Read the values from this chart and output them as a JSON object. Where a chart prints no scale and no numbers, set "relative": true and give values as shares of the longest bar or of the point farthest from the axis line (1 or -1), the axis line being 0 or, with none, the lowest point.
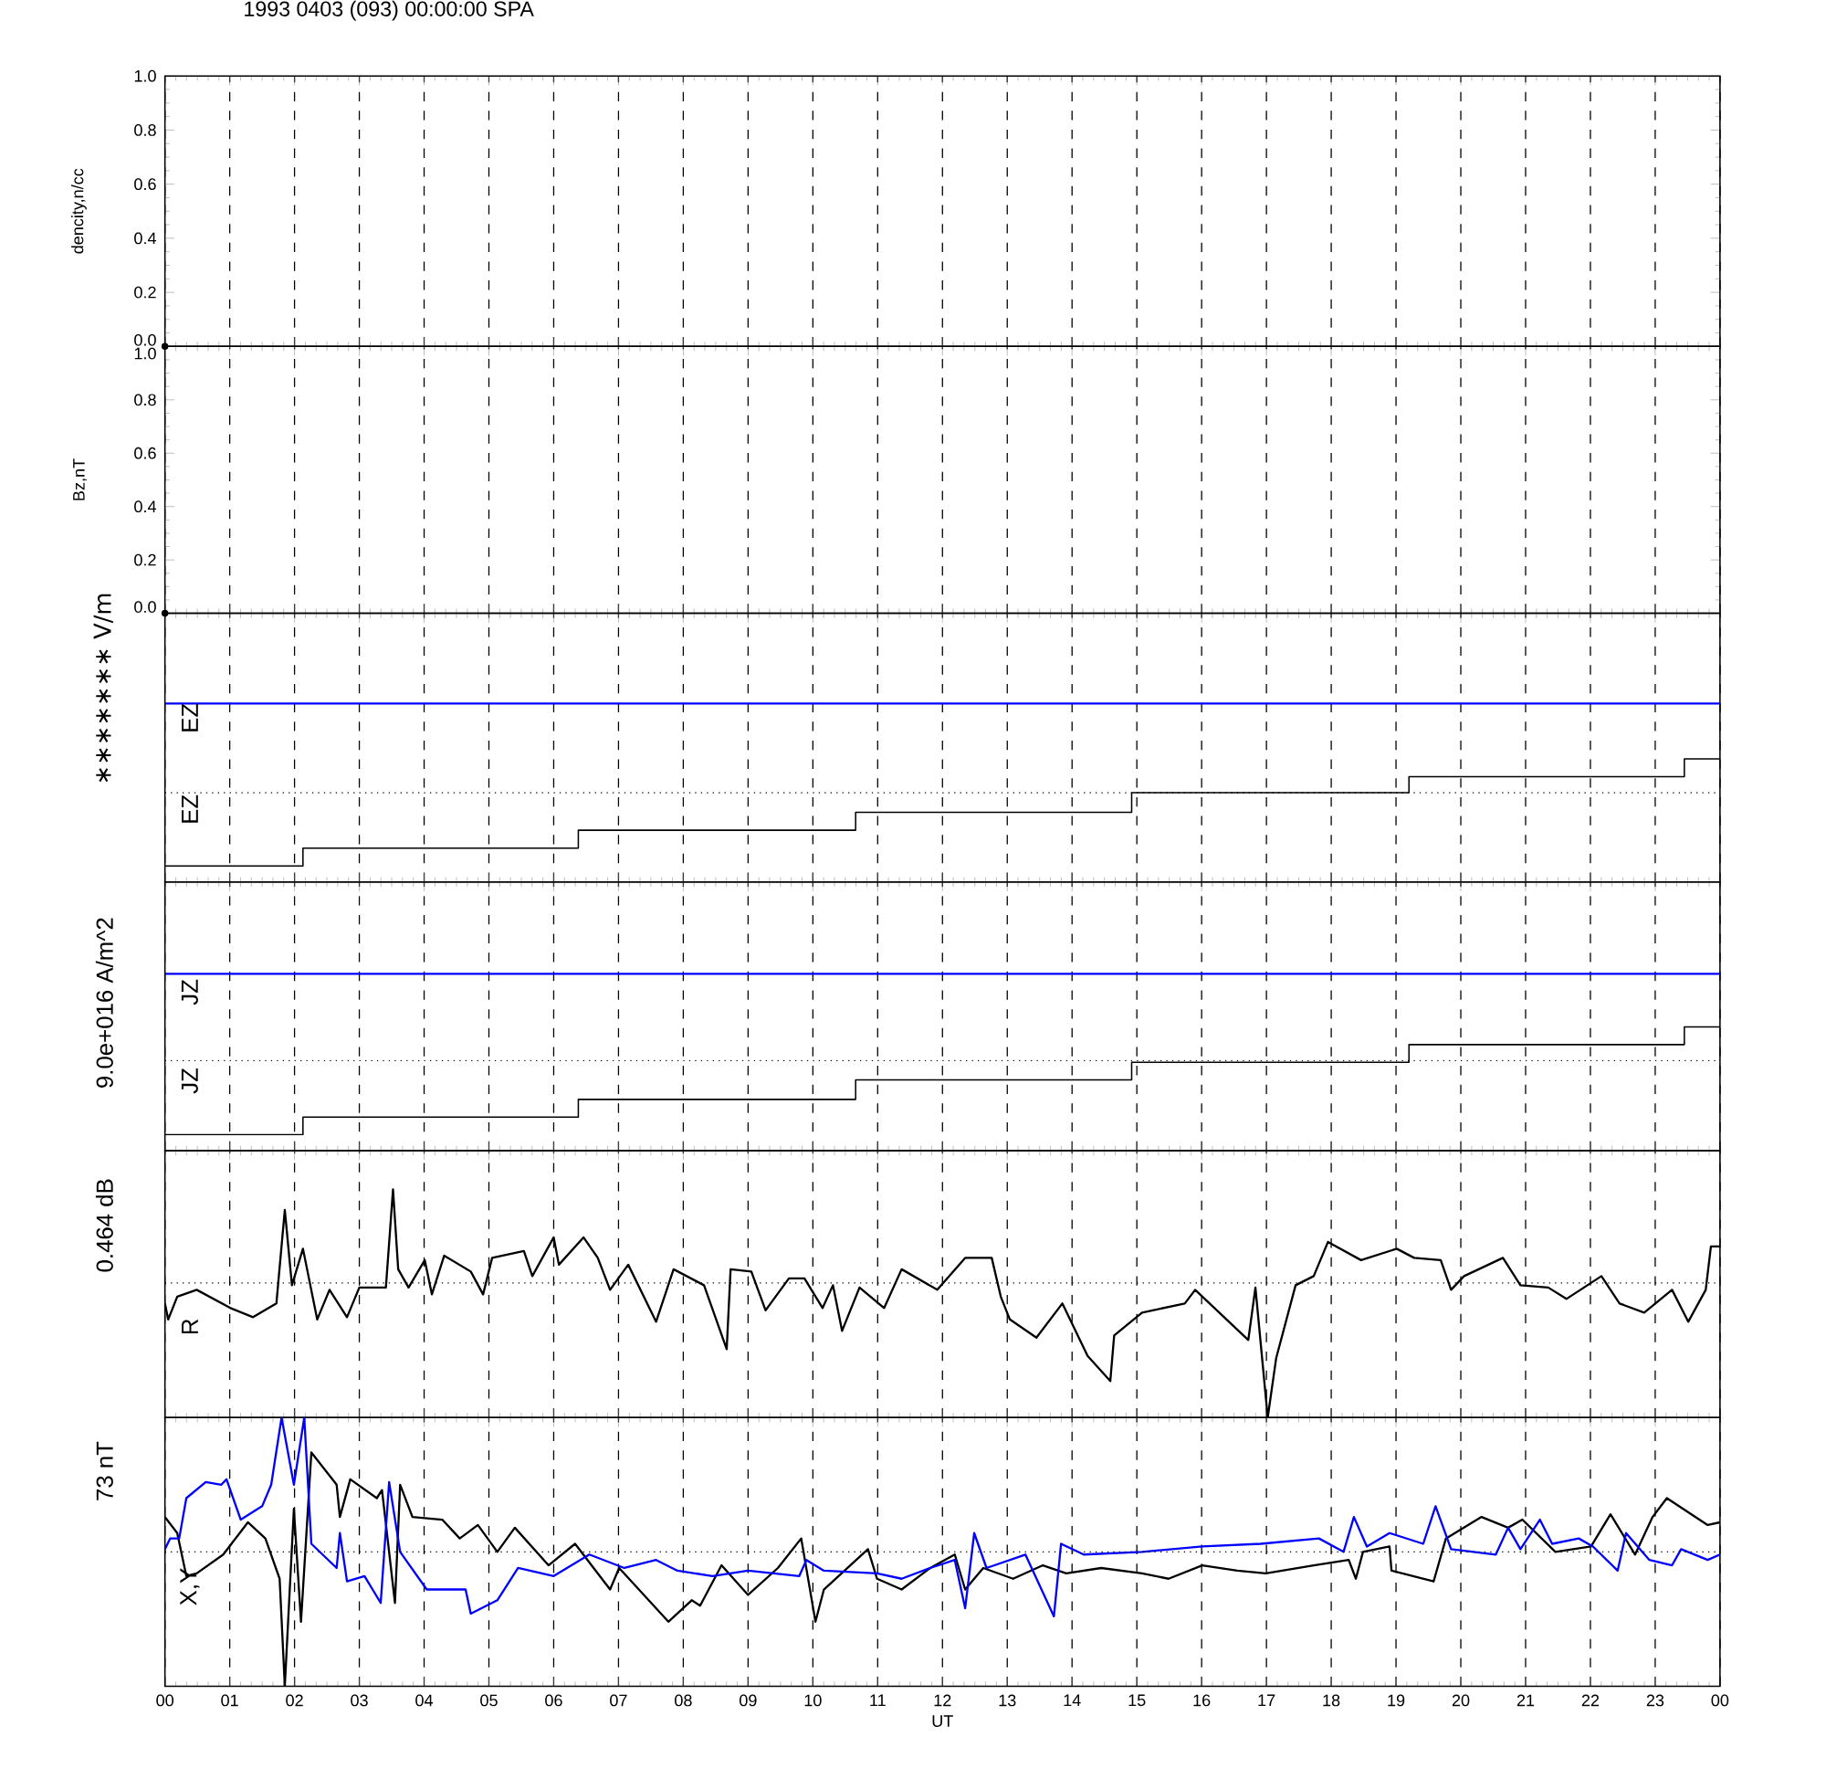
{
  "chart_data": [
    {
      "type": "scatter",
      "title": "1993 0403 (093) 00:00:00 SPA",
      "ylabel": "dencity,n/cc",
      "x": [
        0
      ],
      "values": [
        0
      ],
      "color": "#000000",
      "marker": "circle",
      "xlim": [
        0,
        24
      ],
      "xticks": [
        0,
        1,
        2,
        3,
        4,
        5,
        6,
        7,
        8,
        9,
        10,
        11,
        12,
        13,
        14,
        15,
        16,
        17,
        18,
        19,
        20,
        21,
        22,
        23,
        24
      ],
      "ylim": [
        0,
        1
      ],
      "yticks": [
        {
          "value": 0,
          "label": "0.0"
        },
        {
          "value": 0.2,
          "label": "0.2"
        },
        {
          "value": 0.4,
          "label": "0.4"
        },
        {
          "value": 0.6,
          "label": "0.6"
        },
        {
          "value": 0.8,
          "label": "0.8"
        },
        {
          "value": 1,
          "label": "1.0"
        }
      ],
      "grid": "x",
      "tick_labels": "y"
    },
    {
      "type": "scatter",
      "ylabel": "Bz,nT",
      "x": [
        0
      ],
      "values": [
        0
      ],
      "color": "#000000",
      "marker": "circle",
      "xlim": [
        0,
        24
      ],
      "xticks": [
        0,
        1,
        2,
        3,
        4,
        5,
        6,
        7,
        8,
        9,
        10,
        11,
        12,
        13,
        14,
        15,
        16,
        17,
        18,
        19,
        20,
        21,
        22,
        23,
        24
      ],
      "ylim": [
        0,
        1
      ],
      "yticks": [
        {
          "value": 0,
          "label": "0.0"
        },
        {
          "value": 0.2,
          "label": "0.2"
        },
        {
          "value": 0.4,
          "label": "0.4"
        },
        {
          "value": 0.6,
          "label": "0.6"
        },
        {
          "value": 0.8,
          "label": "0.8"
        },
        {
          "value": 1,
          "label": "1.0"
        }
      ],
      "grid": "x",
      "tick_labels": "y"
    },
    {
      "type": "step",
      "ylabel": "∗∗∗∗∗∗∗ V/m",
      "relative": true,
      "annotations": [
        "EZ",
        "EZ"
      ],
      "xlim": [
        0,
        24
      ],
      "xticks": [
        0,
        1,
        2,
        3,
        4,
        5,
        6,
        7,
        8,
        9,
        10,
        11,
        12,
        13,
        14,
        15,
        16,
        17,
        18,
        19,
        20,
        21,
        22,
        23,
        24
      ],
      "grid": "x",
      "tick_labels": false,
      "ref_lines": [
        {
          "axis": "y",
          "value": 0.5,
          "line_style": "dotted"
        }
      ],
      "series": [
        {
          "color": "#000000",
          "x": [
            0,
            2.13,
            6.38,
            10.66,
            14.92,
            19.2,
            23.45,
            24
          ],
          "values": [
            0.09,
            0.19,
            0.29,
            0.39,
            0.5,
            0.59,
            0.69,
            0.69
          ]
        },
        {
          "type": "line",
          "color": "#0000ff",
          "x": [
            0,
            24
          ],
          "values": [
            1,
            1
          ]
        }
      ]
    },
    {
      "type": "step",
      "ylabel": "9.0e+016 A/m^2",
      "relative": true,
      "annotations": [
        "JZ",
        "JZ"
      ],
      "xlim": [
        0,
        24
      ],
      "xticks": [
        0,
        1,
        2,
        3,
        4,
        5,
        6,
        7,
        8,
        9,
        10,
        11,
        12,
        13,
        14,
        15,
        16,
        17,
        18,
        19,
        20,
        21,
        22,
        23,
        24
      ],
      "grid": "x",
      "tick_labels": false,
      "ref_lines": [
        {
          "axis": "y",
          "value": 0.51,
          "line_style": "dotted"
        }
      ],
      "series": [
        {
          "color": "#000000",
          "x": [
            0,
            2.13,
            6.38,
            10.66,
            14.92,
            19.2,
            23.45,
            24
          ],
          "values": [
            0.09,
            0.19,
            0.29,
            0.4,
            0.5,
            0.6,
            0.7,
            0.7
          ]
        },
        {
          "type": "line",
          "color": "#0000ff",
          "x": [
            0,
            24
          ],
          "values": [
            1,
            1
          ]
        }
      ]
    },
    {
      "type": "line",
      "ylabel": "0.464 dB",
      "relative": true,
      "annotations": [
        "R"
      ],
      "xlim": [
        0,
        24
      ],
      "xticks": [
        0,
        1,
        2,
        3,
        4,
        5,
        6,
        7,
        8,
        9,
        10,
        11,
        12,
        13,
        14,
        15,
        16,
        17,
        18,
        19,
        20,
        21,
        22,
        23,
        24
      ],
      "grid": "x",
      "tick_labels": false,
      "ref_lines": [
        {
          "axis": "y",
          "value": 0.59,
          "line_style": "dotted"
        }
      ],
      "series": [
        {
          "color": "#000000",
          "x": [
            0,
            0.05,
            0.19,
            0.49,
            1.01,
            1.36,
            1.72,
            1.85,
            1.96,
            2.13,
            2.35,
            2.54,
            2.81,
            3.0,
            3.41,
            3.52,
            3.6,
            3.76,
            4.01,
            4.12,
            4.31,
            4.72,
            4.91,
            5.05,
            5.54,
            5.67,
            6.0,
            6.08,
            6.46,
            6.68,
            6.87,
            7.15,
            7.58,
            7.85,
            8.32,
            8.67,
            8.73,
            9.05,
            9.27,
            9.63,
            9.87,
            10.15,
            10.31,
            10.45,
            10.72,
            11.1,
            11.37,
            11.92,
            12.35,
            12.76,
            12.9,
            13.04,
            13.45,
            13.85,
            14.24,
            14.59,
            14.65,
            15.08,
            15.74,
            15.9,
            16.72,
            16.83,
            17.02,
            17.15,
            17.45,
            17.73,
            17.95,
            18.46,
            19.01,
            19.28,
            19.69,
            19.85,
            20.05,
            20.65,
            20.92,
            21.35,
            21.63,
            22.17,
            22.45,
            22.83,
            23.26,
            23.51,
            23.78,
            23.86,
            24
          ],
          "values": [
            0.5,
            0.43,
            0.53,
            0.56,
            0.48,
            0.44,
            0.5,
            0.91,
            0.58,
            0.74,
            0.43,
            0.56,
            0.44,
            0.57,
            0.57,
            1.0,
            0.65,
            0.57,
            0.69,
            0.54,
            0.71,
            0.64,
            0.54,
            0.7,
            0.73,
            0.62,
            0.79,
            0.67,
            0.79,
            0.7,
            0.56,
            0.67,
            0.42,
            0.65,
            0.58,
            0.3,
            0.65,
            0.64,
            0.47,
            0.61,
            0.61,
            0.48,
            0.58,
            0.38,
            0.57,
            0.48,
            0.65,
            0.56,
            0.7,
            0.7,
            0.53,
            0.43,
            0.35,
            0.5,
            0.27,
            0.16,
            0.36,
            0.46,
            0.5,
            0.56,
            0.34,
            0.57,
            0,
            0.26,
            0.58,
            0.62,
            0.77,
            0.69,
            0.74,
            0.7,
            0.69,
            0.56,
            0.62,
            0.7,
            0.58,
            0.57,
            0.52,
            0.62,
            0.5,
            0.46,
            0.56,
            0.42,
            0.56,
            0.75,
            0.75
          ]
        }
      ]
    },
    {
      "type": "line",
      "ylabel": "73 nT",
      "xlabel": "UT",
      "relative": true,
      "annotations": [
        "X,Y"
      ],
      "xlim": [
        0,
        24
      ],
      "xticks": [
        {
          "value": 0,
          "label": "00"
        },
        {
          "value": 1,
          "label": "01"
        },
        {
          "value": 2,
          "label": "02"
        },
        {
          "value": 3,
          "label": "03"
        },
        {
          "value": 4,
          "label": "04"
        },
        {
          "value": 5,
          "label": "05"
        },
        {
          "value": 6,
          "label": "06"
        },
        {
          "value": 7,
          "label": "07"
        },
        {
          "value": 8,
          "label": "08"
        },
        {
          "value": 9,
          "label": "09"
        },
        {
          "value": 10,
          "label": "10"
        },
        {
          "value": 11,
          "label": "11"
        },
        {
          "value": 12,
          "label": "12"
        },
        {
          "value": 13,
          "label": "13"
        },
        {
          "value": 14,
          "label": "14"
        },
        {
          "value": 15,
          "label": "15"
        },
        {
          "value": 16,
          "label": "16"
        },
        {
          "value": 17,
          "label": "17"
        },
        {
          "value": 18,
          "label": "18"
        },
        {
          "value": 19,
          "label": "19"
        },
        {
          "value": 20,
          "label": "20"
        },
        {
          "value": 21,
          "label": "21"
        },
        {
          "value": 22,
          "label": "22"
        },
        {
          "value": 23,
          "label": "23"
        },
        {
          "value": 24,
          "label": "00"
        }
      ],
      "grid": "x",
      "tick_labels": "x",
      "ref_lines": [
        {
          "axis": "y",
          "value": 0.5,
          "line_style": "dotted"
        }
      ],
      "series": [
        {
          "color": "#000000",
          "x": [
            0,
            0.19,
            0.33,
            0.49,
            0.9,
            1.28,
            1.55,
            1.77,
            1.85,
            1.99,
            2.1,
            2.26,
            2.65,
            2.7,
            2.86,
            3.27,
            3.35,
            3.55,
            3.63,
            3.82,
            4.28,
            4.55,
            4.83,
            5.13,
            5.4,
            5.92,
            6.33,
            6.87,
            7.01,
            7.77,
            8.13,
            8.26,
            8.59,
            9.0,
            9.46,
            9.82,
            10.04,
            10.17,
            10.85,
            10.99,
            11.37,
            11.81,
            12.19,
            12.35,
            12.63,
            13.09,
            13.55,
            13.91,
            14.45,
            15.08,
            15.49,
            16.01,
            16.55,
            16.99,
            17.73,
            18.27,
            18.38,
            18.49,
            18.9,
            18.93,
            19.58,
            19.77,
            20.32,
            20.73,
            20.95,
            21.46,
            22.01,
            22.31,
            22.69,
            22.96,
            23.18,
            23.81,
            24
          ],
          "values": [
            0.63,
            0.57,
            0.41,
            0.42,
            0.49,
            0.61,
            0.55,
            0.4,
            0,
            0.66,
            0.24,
            0.87,
            0.75,
            0.63,
            0.77,
            0.7,
            0.73,
            0.31,
            0.75,
            0.63,
            0.62,
            0.55,
            0.6,
            0.5,
            0.59,
            0.45,
            0.53,
            0.36,
            0.44,
            0.24,
            0.32,
            0.3,
            0.45,
            0.34,
            0.44,
            0.55,
            0.24,
            0.36,
            0.51,
            0.4,
            0.36,
            0.44,
            0.49,
            0.36,
            0.44,
            0.4,
            0.45,
            0.42,
            0.44,
            0.42,
            0.4,
            0.45,
            0.43,
            0.42,
            0.45,
            0.47,
            0.4,
            0.5,
            0.52,
            0.43,
            0.39,
            0.55,
            0.63,
            0.59,
            0.62,
            0.5,
            0.52,
            0.64,
            0.49,
            0.63,
            0.7,
            0.6,
            0.61
          ]
        },
        {
          "color": "#0000ff",
          "x": [
            0,
            0.08,
            0.22,
            0.33,
            0.63,
            0.87,
            0.95,
            1.17,
            1.5,
            1.64,
            1.8,
            1.99,
            2.15,
            2.26,
            2.65,
            2.7,
            2.81,
            3.08,
            3.33,
            3.46,
            3.63,
            4.04,
            4.64,
            4.72,
            5.13,
            5.45,
            6.0,
            6.55,
            7.09,
            7.58,
            7.91,
            8.45,
            9.0,
            9.79,
            9.9,
            10.17,
            10.99,
            11.37,
            11.81,
            12.19,
            12.35,
            12.49,
            12.68,
            13.28,
            13.72,
            13.83,
            14.18,
            15.08,
            16.01,
            16.91,
            17.81,
            18.19,
            18.35,
            18.55,
            18.9,
            19.42,
            19.61,
            19.85,
            20.54,
            20.73,
            20.92,
            21.22,
            21.41,
            21.82,
            22.04,
            22.42,
            22.55,
            22.91,
            23.26,
            23.4,
            23.81,
            24
          ],
          "values": [
            0.51,
            0.55,
            0.55,
            0.7,
            0.76,
            0.75,
            0.77,
            0.62,
            0.67,
            0.75,
            1.0,
            0.75,
            1.0,
            0.53,
            0.44,
            0.57,
            0.39,
            0.41,
            0.31,
            0.76,
            0.5,
            0.36,
            0.36,
            0.27,
            0.32,
            0.44,
            0.41,
            0.49,
            0.44,
            0.47,
            0.43,
            0.41,
            0.43,
            0.41,
            0.47,
            0.43,
            0.42,
            0.4,
            0.44,
            0.47,
            0.29,
            0.57,
            0.44,
            0.49,
            0.26,
            0.53,
            0.49,
            0.5,
            0.52,
            0.53,
            0.55,
            0.5,
            0.63,
            0.52,
            0.57,
            0.53,
            0.67,
            0.51,
            0.49,
            0.59,
            0.51,
            0.62,
            0.53,
            0.55,
            0.52,
            0.43,
            0.57,
            0.47,
            0.45,
            0.51,
            0.47,
            0.49
          ]
        }
      ]
    }
  ]
}
